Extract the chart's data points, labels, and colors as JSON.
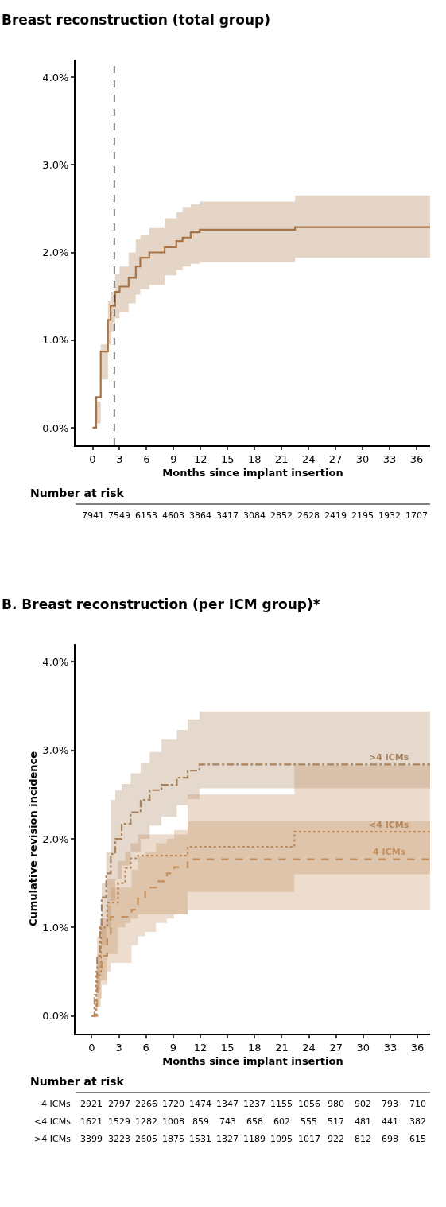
{
  "chart_data": [
    {
      "type": "step",
      "title": "Breast reconstruction (total group)",
      "xlabel": "Months since implant insertion",
      "xlim": [
        -1.9,
        37.5
      ],
      "xticks": [
        0,
        3,
        6,
        9,
        12,
        15,
        18,
        21,
        24,
        27,
        30,
        33,
        36
      ],
      "ylim": [
        -0.2,
        4.2
      ],
      "yticks": [
        {
          "value": 0,
          "label": "0.0%"
        },
        {
          "value": 1,
          "label": "1.0%"
        },
        {
          "value": 2,
          "label": "2.0%"
        },
        {
          "value": 3,
          "label": "3.0%"
        },
        {
          "value": 4,
          "label": "4.0%"
        }
      ],
      "legend": false,
      "x": [
        0,
        0.4,
        0.9,
        1.7,
        2.0,
        2.5,
        3.0,
        4.0,
        4.8,
        5.3,
        6.3,
        8,
        9.3,
        10,
        10.9,
        11.9,
        22.5,
        37.5
      ],
      "series": [
        {
          "color": "#a87445",
          "line_style": "solid",
          "values": [
            0,
            0.35,
            0.87,
            1.23,
            1.39,
            1.55,
            1.61,
            1.71,
            1.84,
            1.94,
            2.0,
            2.06,
            2.13,
            2.17,
            2.23,
            2.26,
            2.29,
            2.29
          ],
          "upper": [
            0,
            0.3,
            0.95,
            1.45,
            1.55,
            1.75,
            1.84,
            2.0,
            2.15,
            2.2,
            2.28,
            2.39,
            2.46,
            2.52,
            2.55,
            2.58,
            2.65,
            2.65
          ],
          "lower": [
            0,
            0.05,
            0.55,
            0.95,
            1.1,
            1.25,
            1.32,
            1.42,
            1.52,
            1.58,
            1.63,
            1.74,
            1.8,
            1.84,
            1.87,
            1.89,
            1.94,
            1.94
          ]
        }
      ],
      "ref_lines": [
        {
          "axis": "x",
          "value": 2.4,
          "color": "#000000",
          "line_style": "dashed"
        }
      ],
      "annotations": [
        "Number at risk",
        "7941",
        "7549",
        "6153",
        "4603",
        "3864",
        "3417",
        "3084",
        "2852",
        "2628",
        "2419",
        "2195",
        "1932",
        "1707"
      ]
    },
    {
      "type": "step",
      "title": "B. Breast reconstruction (per ICM group)*",
      "xlabel": "Months since implant insertion",
      "ylabel": "Cumulative revision incidence",
      "xlim": [
        -1.8,
        37.4
      ],
      "xticks": [
        0,
        3,
        6,
        9,
        12,
        15,
        18,
        21,
        24,
        27,
        30,
        33,
        36
      ],
      "ylim": [
        -0.2,
        4.2
      ],
      "yticks": [
        {
          "value": 0,
          "label": "0.0%"
        },
        {
          "value": 1,
          "label": "1.0%"
        },
        {
          "value": 2,
          "label": "2.0%"
        },
        {
          "value": 3,
          "label": "3.0%"
        },
        {
          "value": 4,
          "label": "4.0%"
        }
      ],
      "legend": false,
      "series": [
        {
          "name": ">4 ICMs",
          "color": "#a8825c",
          "line_style": "dashdot",
          "x": [
            0,
            0.3,
            0.6,
            0.9,
            1.1,
            1.6,
            2.1,
            2.6,
            3.3,
            4.3,
            5.4,
            6.4,
            7.7,
            9.4,
            10.6,
            11.9,
            37.4
          ],
          "values": [
            0,
            0.24,
            0.68,
            1.0,
            1.34,
            1.61,
            1.83,
            2.0,
            2.17,
            2.3,
            2.44,
            2.55,
            2.61,
            2.69,
            2.77,
            2.84,
            2.84
          ],
          "upper": [
            0,
            0.2,
            0.9,
            1.1,
            1.5,
            1.85,
            2.44,
            2.55,
            2.62,
            2.74,
            2.86,
            2.98,
            3.12,
            3.23,
            3.35,
            3.44,
            3.44
          ],
          "lower": [
            0,
            0.05,
            0.3,
            0.55,
            0.8,
            1.0,
            1.3,
            1.55,
            1.7,
            1.85,
            2.0,
            2.15,
            2.25,
            2.38,
            2.45,
            2.57,
            2.61
          ]
        },
        {
          "name": "<4 ICMs",
          "color": "#b8875a",
          "line_style": "dotted",
          "x": [
            0,
            0.5,
            1.0,
            1.7,
            2.9,
            3.7,
            4.3,
            5.1,
            10.6,
            22.4,
            37.4
          ],
          "values": [
            0,
            0.5,
            1.0,
            1.28,
            1.5,
            1.67,
            1.78,
            1.81,
            1.91,
            2.08,
            2.08
          ],
          "upper": [
            0,
            0.6,
            1.1,
            1.55,
            1.75,
            1.85,
            1.95,
            2.05,
            2.5,
            2.83,
            2.83
          ],
          "lower": [
            0,
            0.1,
            0.4,
            0.7,
            1.0,
            1.05,
            1.1,
            1.15,
            1.4,
            1.6,
            1.6
          ]
        },
        {
          "name": "4 ICMs",
          "color": "#c48f5c",
          "line_style": "dashed",
          "x": [
            0,
            0.6,
            1.1,
            1.7,
            2.1,
            4.4,
            5.1,
            5.9,
            7.1,
            8.3,
            9.1,
            10.6,
            37.4
          ],
          "values": [
            0,
            0.46,
            0.68,
            0.9,
            1.12,
            1.2,
            1.34,
            1.45,
            1.52,
            1.61,
            1.68,
            1.77,
            1.77
          ],
          "upper": [
            0,
            0.7,
            1.0,
            1.25,
            1.45,
            1.65,
            1.8,
            1.85,
            1.95,
            2.0,
            2.1,
            2.2,
            2.24
          ],
          "lower": [
            0,
            0.2,
            0.35,
            0.5,
            0.6,
            0.8,
            0.9,
            0.95,
            1.05,
            1.1,
            1.15,
            1.2,
            1.28
          ]
        }
      ],
      "annotations": [
        "Number at risk",
        "4 ICMs",
        "2921",
        "2797",
        "2266",
        "1720",
        "1474",
        "1347",
        "1237",
        "1155",
        "1056",
        "980",
        "902",
        "793",
        "710",
        "<4 ICMs",
        "1621",
        "1529",
        "1282",
        "1008",
        "859",
        "743",
        "658",
        "602",
        "555",
        "517",
        "481",
        "441",
        "382",
        ">4 ICMs",
        "3399",
        "3223",
        "2605",
        "1875",
        "1531",
        "1327",
        "1189",
        "1095",
        "1017",
        "922",
        "812",
        "698",
        "615"
      ]
    }
  ]
}
